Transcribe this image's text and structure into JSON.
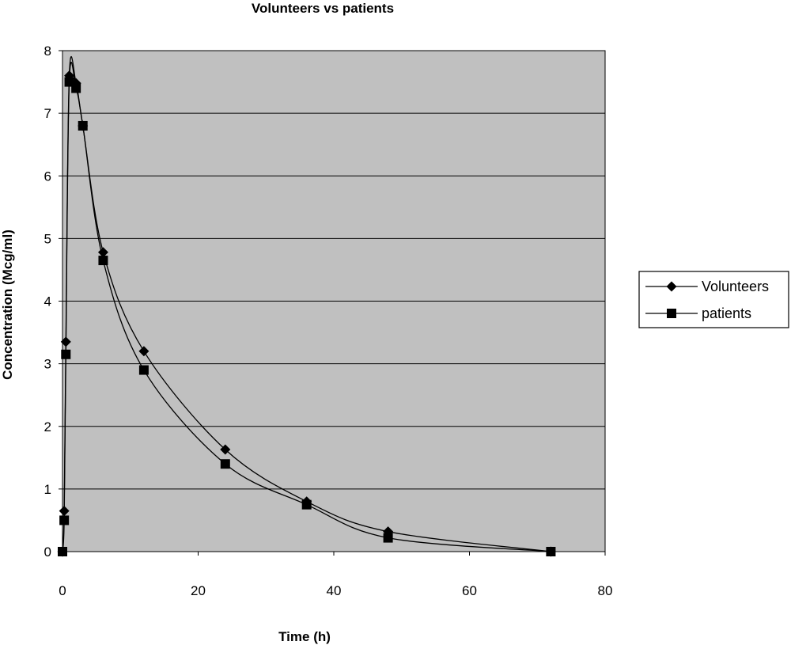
{
  "chart_data": {
    "type": "line",
    "title": "Volunteers vs patients",
    "xlabel": "Time (h)",
    "ylabel": "Concentration (Mcg/ml)",
    "xlim": [
      0,
      80
    ],
    "ylim": [
      0,
      8
    ],
    "x_ticks": [
      "0",
      "20",
      "40",
      "60",
      "80"
    ],
    "y_ticks": [
      "0",
      "1",
      "2",
      "3",
      "4",
      "5",
      "6",
      "7",
      "8"
    ],
    "grid": "horizontal",
    "plot_background": "#c0c0c0",
    "legend_position": "right",
    "series": [
      {
        "name": "Volunteers",
        "marker": "diamond",
        "color": "#000000",
        "x": [
          0,
          0.25,
          0.5,
          1,
          2,
          3,
          6,
          12,
          24,
          36,
          48,
          72
        ],
        "y": [
          0,
          0.65,
          3.35,
          7.6,
          7.48,
          6.8,
          4.78,
          3.2,
          1.63,
          0.8,
          0.32,
          0
        ]
      },
      {
        "name": "patients",
        "marker": "square",
        "color": "#000000",
        "x": [
          0,
          0.25,
          0.5,
          1,
          2,
          3,
          6,
          12,
          24,
          36,
          48,
          72
        ],
        "y": [
          0,
          0.5,
          3.15,
          7.5,
          7.4,
          6.8,
          4.65,
          2.9,
          1.4,
          0.75,
          0.22,
          0
        ]
      }
    ]
  }
}
